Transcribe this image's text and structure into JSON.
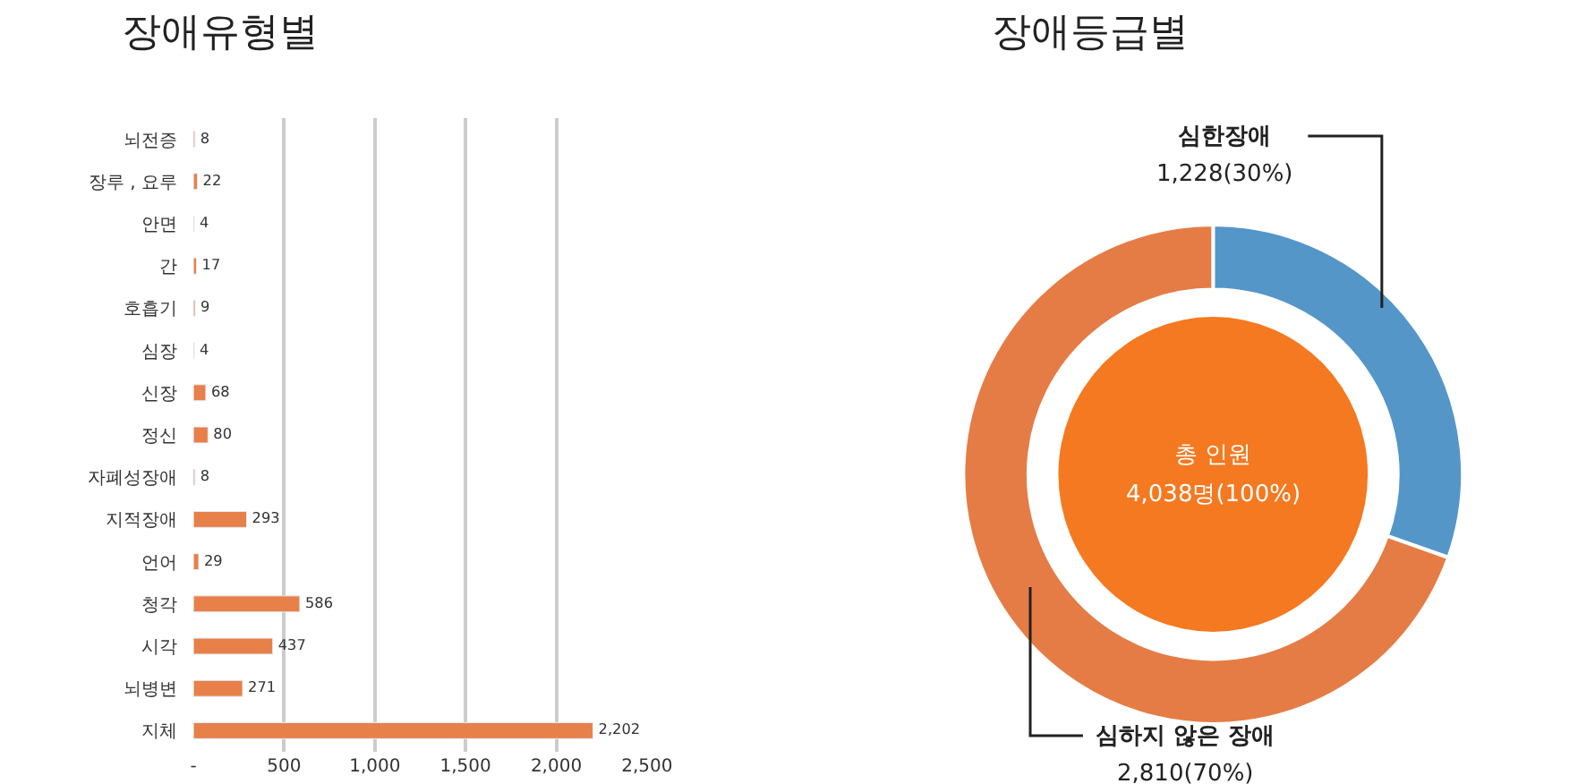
{
  "chart_data": [
    {
      "type": "bar",
      "title": "장애유형별",
      "orientation": "horizontal",
      "categories": [
        "뇌전증",
        "장루 , 요루",
        "안면",
        "간",
        "호흡기",
        "심장",
        "신장",
        "정신",
        "자폐성장애",
        "지적장애",
        "언어",
        "청각",
        "시각",
        "뇌병변",
        "지체"
      ],
      "values": [
        8,
        22,
        4,
        17,
        9,
        4,
        68,
        80,
        8,
        293,
        29,
        586,
        437,
        271,
        2202
      ],
      "value_labels": [
        "8",
        "22",
        "4",
        "17",
        "9",
        "4",
        "68",
        "80",
        "8",
        "293",
        "29",
        "586",
        "437",
        "271",
        "2,202"
      ],
      "color": "#e8804a",
      "xlim": [
        0,
        2500
      ],
      "xticks": [
        {
          "value": 0,
          "label": "-"
        },
        {
          "value": 500,
          "label": "500"
        },
        {
          "value": 1000,
          "label": "1,000"
        },
        {
          "value": 1500,
          "label": "1,500"
        },
        {
          "value": 2000,
          "label": "2,000"
        },
        {
          "value": 2500,
          "label": "2,500"
        }
      ],
      "grid": "x"
    },
    {
      "type": "donut",
      "title": "장애등급별",
      "categories": [
        "심한장애",
        "심하지 않은 장애"
      ],
      "values": [
        1228,
        2810
      ],
      "value_labels": [
        "1,228(30%)",
        "2,810(70%)"
      ],
      "colors": [
        "#5596c9",
        "#e57c45"
      ],
      "annotations": [
        "총 인원",
        "4,038명(100%)"
      ]
    }
  ]
}
